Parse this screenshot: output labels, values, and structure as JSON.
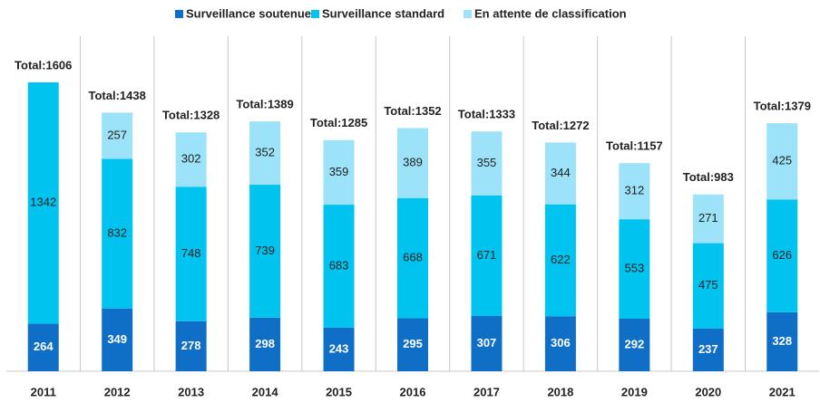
{
  "chart_data": {
    "type": "stacked-bar",
    "categories": [
      "2011",
      "2012",
      "2013",
      "2014",
      "2015",
      "2016",
      "2017",
      "2018",
      "2019",
      "2020",
      "2021"
    ],
    "series": [
      {
        "name": "Surveillance soutenue",
        "color": "#0f6fc6",
        "values": [
          264,
          349,
          278,
          298,
          243,
          295,
          307,
          306,
          292,
          237,
          328
        ]
      },
      {
        "name": "Surveillance standard",
        "color": "#00c3f0",
        "values": [
          1342,
          832,
          748,
          739,
          683,
          668,
          671,
          622,
          553,
          475,
          626
        ]
      },
      {
        "name": "En attente de classification",
        "color": "#9ce2f8",
        "values": [
          null,
          257,
          302,
          352,
          359,
          389,
          355,
          344,
          312,
          271,
          425
        ]
      }
    ],
    "total_labels": [
      "Total:1606",
      "Total:1438",
      "Total:1328",
      "Total:1389",
      "Total:1285",
      "Total:1352",
      "Total:1333",
      "Total:1272",
      "Total:1157",
      "Total:983",
      "Total:1379"
    ],
    "legend": "top"
  }
}
